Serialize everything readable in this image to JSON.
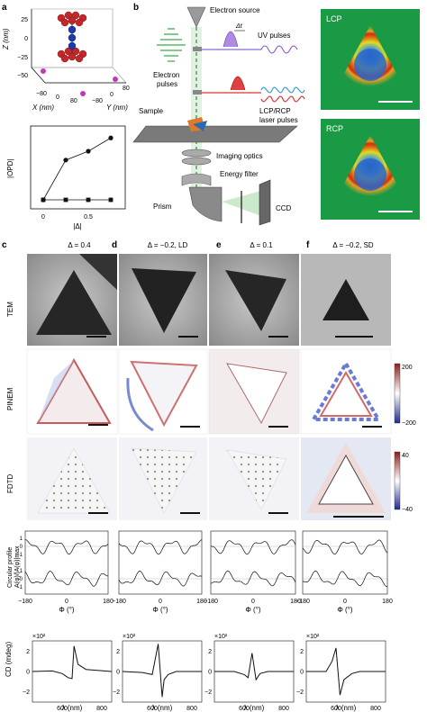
{
  "panel_labels": [
    "a",
    "b",
    "c",
    "d",
    "e",
    "f"
  ],
  "panel_a": {
    "top": {
      "z_label": "Z (nm)",
      "z_ticks": [
        "25",
        "0",
        "−25",
        "−50"
      ],
      "x_label": "X (nm)",
      "y_label": "Y (nm)",
      "x_ticks": [
        "−80",
        "0",
        "80"
      ],
      "y_ticks": [
        "−80",
        "0",
        "80"
      ]
    },
    "bottom": {
      "ylabel": "|OPD|",
      "xlabel": "|Δ|",
      "xticks": [
        "0",
        "0.5"
      ],
      "colors": {
        "line": "#111111"
      }
    }
  },
  "panel_b": {
    "electron_source": "Electron source",
    "electron_pulses": "Electron\npulses",
    "delta_t": "Δt",
    "uv_pulses": "UV pulses",
    "laser_pulses": "LCP/RCP\nlaser pulses",
    "sample": "Sample",
    "imaging_optics": "Imaging optics",
    "energy_filter": "Energy filter",
    "prism": "Prism",
    "ccd": "CCD",
    "lcp": "LCP",
    "rcp": "RCP"
  },
  "columns": [
    {
      "letter": "c",
      "title": "Δ = 0.4"
    },
    {
      "letter": "d",
      "title": "Δ = −0.2, LD"
    },
    {
      "letter": "e",
      "title": "Δ = 0.1"
    },
    {
      "letter": "f",
      "title": "Δ = −0.2, SD"
    }
  ],
  "row_labels": {
    "tem": "TEM",
    "pinem": "PINEM",
    "fdtd": "FDTD"
  },
  "colorbars": {
    "pinem": {
      "max": "200",
      "min": "−200"
    },
    "fdtd": {
      "max": "40",
      "min": "−40"
    }
  },
  "profile": {
    "ylabel_1": "Circular profile",
    "ylabel_2": "A(φ)/|A(φ)|max",
    "yticks_top": [
      "1",
      "0",
      "−1"
    ],
    "yticks_bottom": [
      "1",
      "0",
      "−1"
    ],
    "xticks": [
      "−180",
      "0",
      "180"
    ],
    "xlabel": "Φ (°)"
  },
  "cd": {
    "ylabel": "CD (mdeg)",
    "multiplier": "×10²",
    "yticks": [
      "2",
      "0",
      "−2"
    ],
    "xticks": [
      "600",
      "800"
    ],
    "xlabel": "λ (nm)"
  },
  "chart_data": [
    {
      "type": "line",
      "xlabel": "|Δ|",
      "ylabel": "|OPD|",
      "xlim": [
        0,
        0.8
      ],
      "series": [
        {
          "x": [
            0,
            0.25,
            0.5,
            0.75
          ],
          "y": [
            0.0,
            1.35,
            1.65,
            2.1
          ]
        },
        {
          "x": [
            0,
            0.25,
            0.5,
            0.75
          ],
          "y": [
            0.0,
            0.0,
            0.0,
            0.0
          ]
        }
      ]
    },
    {
      "type": "line",
      "xlabel": "λ (nm)",
      "ylabel": "CD (mdeg)",
      "note": "×10²",
      "panels": [
        "c",
        "d",
        "e",
        "f"
      ],
      "xlim": [
        450,
        850
      ],
      "ylim": [
        -3,
        3
      ],
      "series": [
        {
          "x": [
            450,
            550,
            600,
            630,
            650,
            660,
            680,
            720,
            850
          ],
          "y": [
            0,
            0.05,
            -0.2,
            -0.6,
            -0.7,
            2.5,
            0.7,
            0.2,
            0
          ]
        },
        {
          "x": [
            450,
            550,
            600,
            630,
            650,
            660,
            680,
            720,
            850
          ],
          "y": [
            0,
            -0.1,
            -0.3,
            2.7,
            -2.5,
            -0.8,
            -0.3,
            0,
            0
          ]
        },
        {
          "x": [
            450,
            550,
            600,
            620,
            640,
            660,
            680,
            720,
            850
          ],
          "y": [
            0,
            0,
            -0.3,
            -0.6,
            1.8,
            -0.8,
            -0.2,
            0,
            0
          ]
        },
        {
          "x": [
            450,
            550,
            580,
            600,
            620,
            640,
            680,
            720,
            850
          ],
          "y": [
            0,
            0,
            1.0,
            2.3,
            -2.3,
            -0.8,
            -0.2,
            0,
            0
          ]
        }
      ]
    }
  ]
}
